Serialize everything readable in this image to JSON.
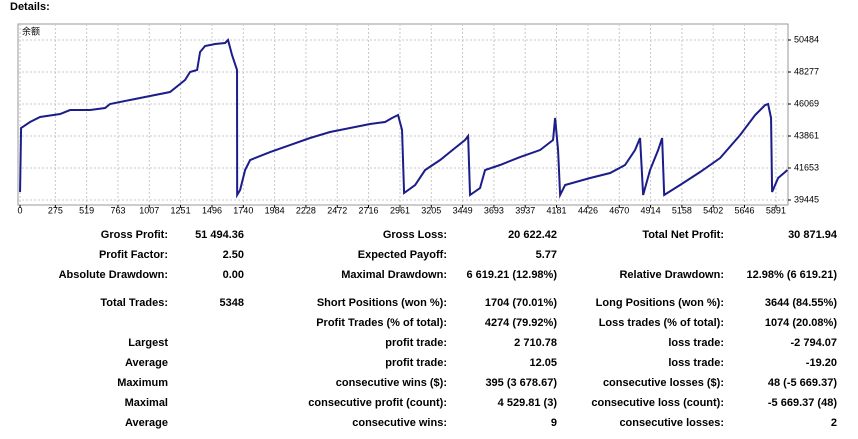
{
  "header": "Details:",
  "chart_data": {
    "type": "line",
    "title": "余额",
    "color": "#1c1c8a",
    "grid": true,
    "x": [
      0,
      8,
      78,
      156,
      312,
      390,
      546,
      663,
      701,
      857,
      1013,
      1169,
      1247,
      1286,
      1325,
      1380,
      1403,
      1442,
      1520,
      1598,
      1621,
      1652,
      1691,
      1692,
      1715,
      1754,
      1793,
      1949,
      2104,
      2260,
      2416,
      2572,
      2728,
      2845,
      2899,
      2946,
      2977,
      2993,
      3079,
      3157,
      3274,
      3390,
      3468,
      3492,
      3507,
      3585,
      3624,
      3741,
      3897,
      4053,
      4154,
      4170,
      4193,
      4209,
      4248,
      4443,
      4599,
      4715,
      4793,
      4832,
      4856,
      4910,
      4973,
      5004,
      5020,
      5144,
      5300,
      5456,
      5612,
      5729,
      5807,
      5830,
      5853,
      5861,
      5908,
      5963,
      5980
    ],
    "values": [
      40000,
      44412,
      44826,
      45171,
      45378,
      45654,
      45654,
      45792,
      46068,
      46344,
      46620,
      46896,
      47448,
      47724,
      48276,
      48414,
      49656,
      50070,
      50208,
      50277,
      50484,
      49449,
      48414,
      39789,
      40134,
      41514,
      42204,
      42756,
      43239,
      43722,
      44136,
      44412,
      44688,
      44826,
      45102,
      45309,
      44274,
      39927,
      40479,
      41514,
      42204,
      43032,
      43584,
      43860,
      39789,
      40272,
      41514,
      41859,
      42411,
      42894,
      43584,
      45102,
      42894,
      39789,
      40479,
      40962,
      41307,
      41859,
      42894,
      43722,
      39789,
      41514,
      42894,
      43722,
      39789,
      40479,
      41376,
      42342,
      43929,
      45309,
      45999,
      46068,
      45102,
      40000,
      40962,
      41376,
      41514
    ],
    "xlim": [
      -16,
      5985
    ],
    "ylim": [
      39100,
      51588
    ],
    "xticks": [
      0,
      275,
      519,
      763,
      1007,
      1251,
      1496,
      1740,
      1984,
      2228,
      2472,
      2716,
      2961,
      3205,
      3449,
      3693,
      3937,
      4181,
      4426,
      4670,
      4914,
      5158,
      5402,
      5646,
      5891
    ],
    "yticks": [
      39445,
      41653,
      43861,
      46069,
      48277,
      50484
    ]
  },
  "stats": {
    "rows": [
      [
        "Gross Profit:",
        "51 494.36",
        "Gross Loss:",
        "20 622.42",
        "Total Net Profit:",
        "30 871.94"
      ],
      [
        "Profit Factor:",
        "2.50",
        "Expected Payoff:",
        "5.77",
        null,
        null
      ],
      [
        "Absolute Drawdown:",
        "0.00",
        "Maximal Drawdown:",
        "6 619.21 (12.98%)",
        "Relative Drawdown:",
        "12.98% (6 619.21)"
      ],
      [
        "Total Trades:",
        "5348",
        "Short Positions (won %):",
        "1704 (70.01%)",
        "Long Positions (won %):",
        "3644 (84.55%)"
      ],
      [
        null,
        null,
        "Profit Trades (% of total):",
        "4274 (79.92%)",
        "Loss trades (% of total):",
        "1074 (20.08%)"
      ],
      [
        "Largest",
        null,
        "profit trade:",
        "2 710.78",
        "loss trade:",
        "-2 794.07"
      ],
      [
        "Average",
        null,
        "profit trade:",
        "12.05",
        "loss trade:",
        "-19.20"
      ],
      [
        "Maximum",
        null,
        "consecutive wins ($):",
        "395 (3 678.67)",
        "consecutive losses ($):",
        "48 (-5 669.37)"
      ],
      [
        "Maximal",
        null,
        "consecutive profit (count):",
        "4 529.81 (3)",
        "consecutive loss (count):",
        "-5 669.37 (48)"
      ],
      [
        "Average",
        null,
        "consecutive wins:",
        "9",
        "consecutive losses:",
        "2"
      ]
    ]
  }
}
